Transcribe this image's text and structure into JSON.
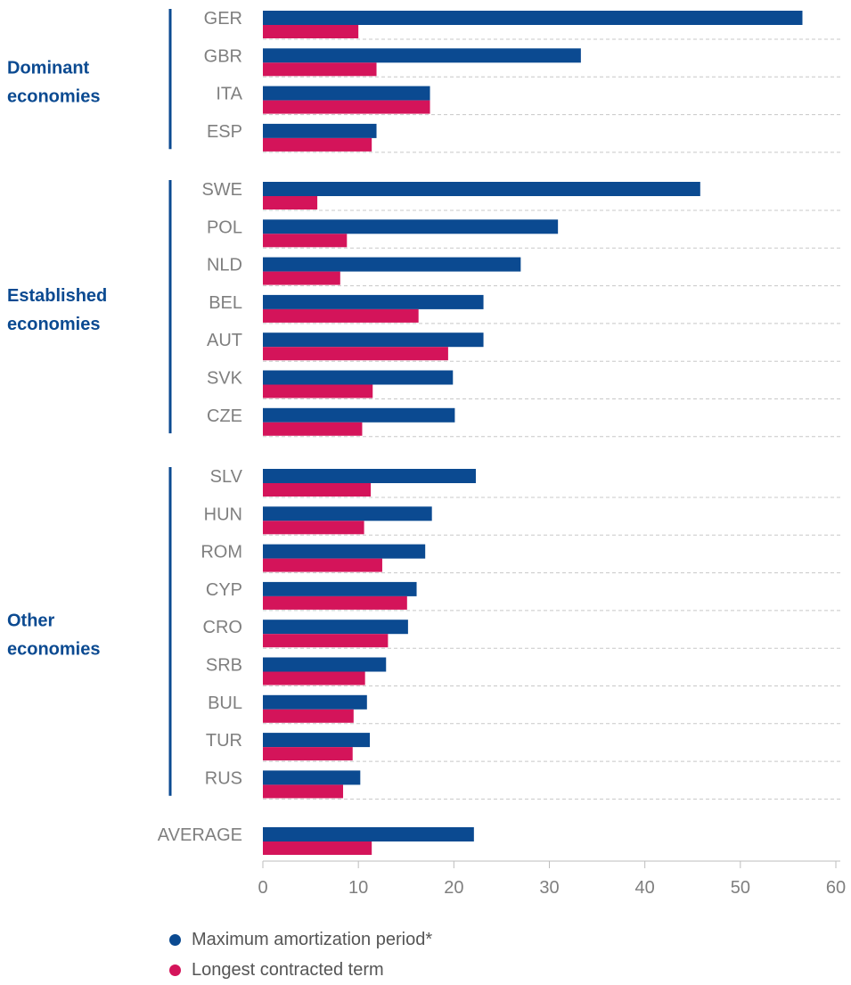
{
  "chart_data": {
    "type": "bar",
    "orientation": "horizontal",
    "xlim": [
      0,
      60
    ],
    "xticks": [
      0,
      10,
      20,
      30,
      40,
      50,
      60
    ],
    "grid": "dashed separators between categories",
    "groups": [
      {
        "label_lines": [
          "Dominant",
          "economies"
        ],
        "categories": [
          "GER",
          "GBR",
          "ITA",
          "ESP"
        ]
      },
      {
        "label_lines": [
          "Established",
          "economies"
        ],
        "categories": [
          "SWE",
          "POL",
          "NLD",
          "BEL",
          "AUT",
          "SVK",
          "CZE"
        ]
      },
      {
        "label_lines": [
          "Other",
          "economies"
        ],
        "categories": [
          "SLV",
          "HUN",
          "ROM",
          "CYP",
          "CRO",
          "SRB",
          "BUL",
          "TUR",
          "RUS"
        ]
      },
      {
        "label_lines": [],
        "categories": [
          "AVERAGE"
        ]
      }
    ],
    "categories": [
      "GER",
      "GBR",
      "ITA",
      "ESP",
      "SWE",
      "POL",
      "NLD",
      "BEL",
      "AUT",
      "SVK",
      "CZE",
      "SLV",
      "HUN",
      "ROM",
      "CYP",
      "CRO",
      "SRB",
      "BUL",
      "TUR",
      "RUS",
      "AVERAGE"
    ],
    "series": [
      {
        "name": "Maximum amortization period*",
        "color": "#0b4a91",
        "values": [
          56.5,
          33.3,
          17.5,
          11.9,
          45.8,
          30.9,
          27.0,
          23.1,
          23.1,
          19.9,
          20.1,
          22.3,
          17.7,
          17.0,
          16.1,
          15.2,
          12.9,
          10.9,
          11.2,
          10.2,
          22.1
        ]
      },
      {
        "name": "Longest contracted term",
        "color": "#d4145a",
        "values": [
          10.0,
          11.9,
          17.5,
          11.4,
          5.7,
          8.8,
          8.1,
          16.3,
          19.4,
          11.5,
          10.4,
          11.3,
          10.6,
          12.5,
          15.1,
          13.1,
          10.7,
          9.5,
          9.4,
          8.4,
          11.4
        ]
      }
    ]
  },
  "legend": {
    "items": [
      {
        "label": "Maximum amortization period*",
        "color": "#0b4a91"
      },
      {
        "label": "Longest contracted term",
        "color": "#d4145a"
      }
    ]
  }
}
